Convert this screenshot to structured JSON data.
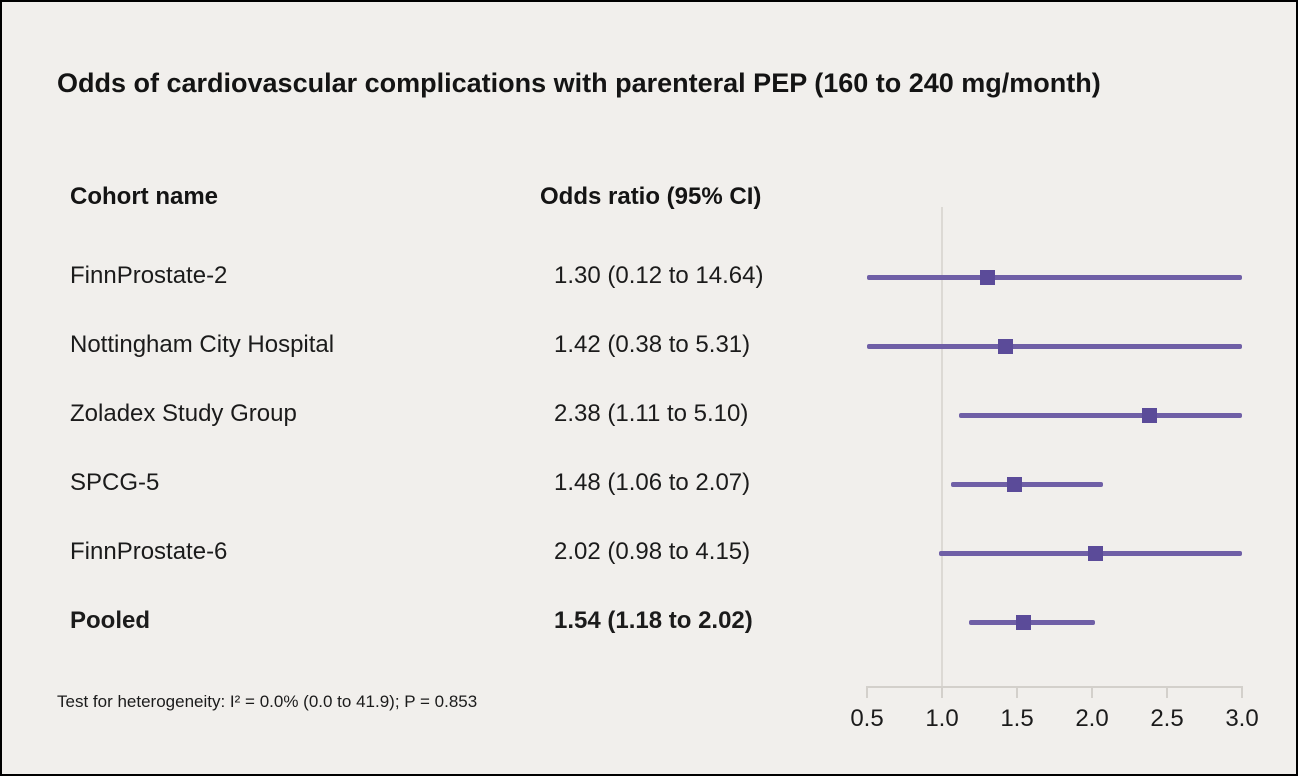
{
  "title": "Odds of cardiovascular complications with parenteral PEP (160 to 240 mg/month)",
  "columns": {
    "cohort": "Cohort name",
    "odds": "Odds ratio (95% CI)"
  },
  "footnote": "Test for heterogeneity: I² = 0.0% (0.0 to 41.9); P = 0.853",
  "colors": {
    "line": "#6f5fa6",
    "marker": "#5b4b99",
    "background": "#f1efec"
  },
  "chart_data": {
    "type": "forest",
    "title": "Odds of cardiovascular complications with parenteral PEP (160 to 240 mg/month)",
    "xlabel": "",
    "ylabel": "",
    "xlim": [
      0.5,
      3.0
    ],
    "x_ticks": [
      0.5,
      1.0,
      1.5,
      2.0,
      2.5,
      3.0
    ],
    "reference_line": 1.0,
    "grid": false,
    "legend": "none",
    "studies": [
      {
        "name": "FinnProstate-2",
        "or": 1.3,
        "ci_low": 0.12,
        "ci_high": 14.64,
        "label": "1.30 (0.12 to 14.64)",
        "bold": false
      },
      {
        "name": "Nottingham City Hospital",
        "or": 1.42,
        "ci_low": 0.38,
        "ci_high": 5.31,
        "label": "1.42 (0.38 to 5.31)",
        "bold": false
      },
      {
        "name": "Zoladex Study Group",
        "or": 2.38,
        "ci_low": 1.11,
        "ci_high": 5.1,
        "label": "2.38 (1.11 to 5.10)",
        "bold": false
      },
      {
        "name": "SPCG-5",
        "or": 1.48,
        "ci_low": 1.06,
        "ci_high": 2.07,
        "label": "1.48 (1.06 to 2.07)",
        "bold": false
      },
      {
        "name": "FinnProstate-6",
        "or": 2.02,
        "ci_low": 0.98,
        "ci_high": 4.15,
        "label": "2.02 (0.98 to 4.15)",
        "bold": false
      },
      {
        "name": "Pooled",
        "or": 1.54,
        "ci_low": 1.18,
        "ci_high": 2.02,
        "label": "1.54 (1.18 to 2.02)",
        "bold": true
      }
    ]
  }
}
